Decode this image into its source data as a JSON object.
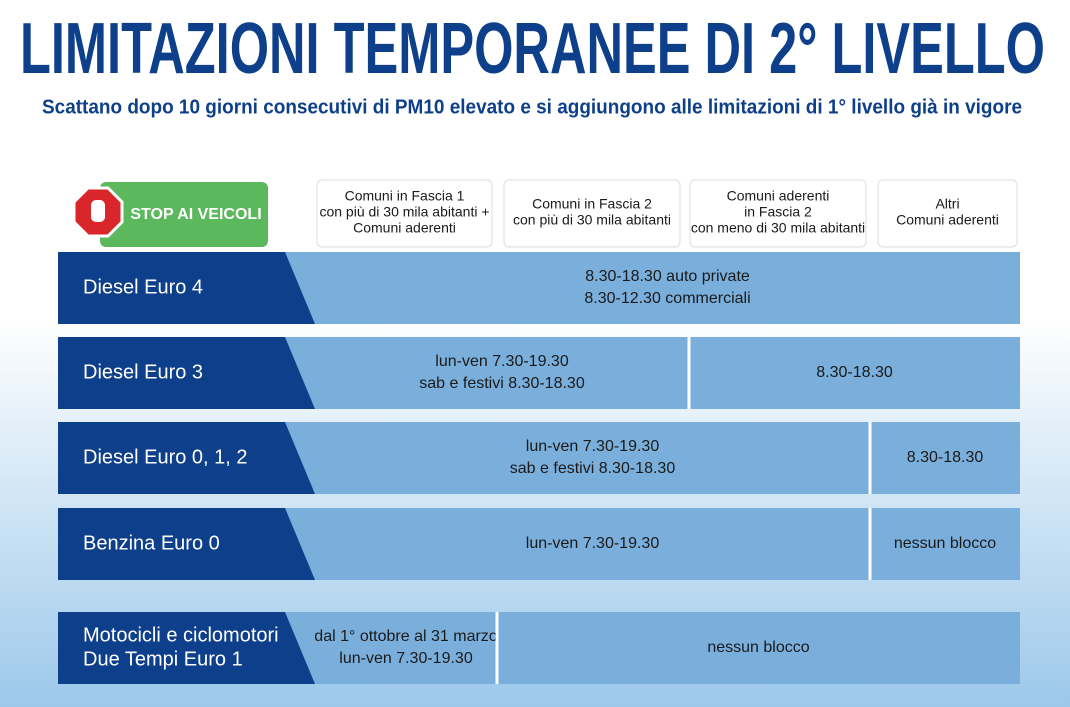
{
  "header": {
    "title": "LIMITAZIONI TEMPORANEE DI 2° LIVELLO",
    "subtitle": "Scattano dopo 10 giorni consecutivi di PM10 elevato e si aggiungono alle limitazioni di 1° livello già in vigore"
  },
  "table": {
    "badge": "STOP AI VEICOLI",
    "columns": [
      [
        "Comuni in Fascia 1",
        "con più di 30 mila abitanti +",
        "Comuni aderenti"
      ],
      [
        "Comuni in Fascia 2",
        "con più di 30 mila abitanti"
      ],
      [
        "Comuni aderenti",
        "in Fascia 2",
        "con meno di 30 mila abitanti"
      ],
      [
        "Altri",
        "Comuni aderenti"
      ]
    ],
    "rows": [
      {
        "label": [
          "Diesel Euro 4"
        ],
        "cells": [
          [
            "8.30-18.30 auto private",
            "8.30-12.30 commerciali"
          ]
        ]
      },
      {
        "label": [
          "Diesel Euro 3"
        ],
        "cells": [
          [
            "lun-ven 7.30-19.30",
            "sab e festivi 8.30-18.30"
          ],
          [
            "8.30-18.30"
          ]
        ]
      },
      {
        "label": [
          "Diesel Euro 0, 1, 2"
        ],
        "cells": [
          [
            "lun-ven 7.30-19.30",
            "sab e festivi 8.30-18.30"
          ],
          [
            "8.30-18.30"
          ]
        ]
      },
      {
        "label": [
          "Benzina Euro 0"
        ],
        "cells": [
          [
            "lun-ven 7.30-19.30"
          ],
          [
            "nessun blocco"
          ]
        ]
      },
      {
        "label": [
          "Motocicli e ciclomotori",
          "Due Tempi Euro 1"
        ],
        "cells": [
          [
            "dal 1° ottobre al 31 marzo",
            "lun-ven 7.30-19.30"
          ],
          [
            "nessun blocco"
          ]
        ]
      }
    ]
  }
}
